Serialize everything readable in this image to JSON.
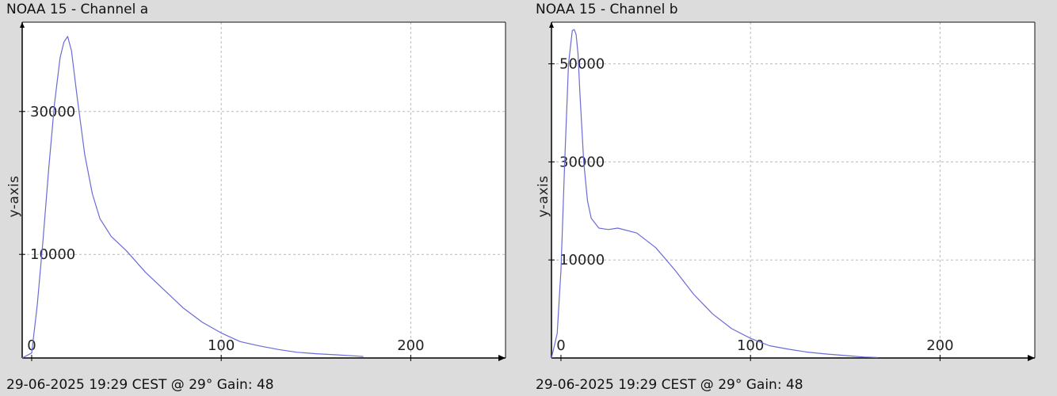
{
  "chart_data": [
    {
      "type": "line",
      "title": "NOAA 15 - Channel a",
      "footer": "29-06-2025 19:29 CEST @ 29° Gain: 48",
      "ylabel": "y-axis",
      "xlabel": "",
      "xlim": [
        -5,
        250
      ],
      "ylim": [
        -4500,
        42500
      ],
      "x_ticks": [
        0,
        100,
        200
      ],
      "y_ticks": [
        10000,
        30000
      ],
      "x_grid": [
        100,
        200
      ],
      "y_grid": [
        10000,
        30000
      ],
      "grid": true,
      "line_color": "#6b6bd6",
      "series": [
        {
          "x": [
            -5,
            0,
            3,
            6,
            9,
            12,
            15,
            17,
            19,
            21,
            24,
            28,
            32,
            36,
            42,
            50,
            60,
            70,
            80,
            90,
            100,
            110,
            120,
            130,
            140,
            150,
            160,
            170,
            175
          ],
          "values": [
            -4500,
            -3800,
            3000,
            12000,
            22000,
            31000,
            37500,
            39700,
            40500,
            38500,
            32000,
            24000,
            18500,
            15000,
            12500,
            10500,
            7500,
            5000,
            2500,
            500,
            -1000,
            -2200,
            -2800,
            -3300,
            -3700,
            -3900,
            -4050,
            -4200,
            -4300
          ]
        }
      ]
    },
    {
      "type": "line",
      "title": "NOAA 15 - Channel b",
      "footer": "29-06-2025 19:29 CEST @ 29° Gain: 48",
      "ylabel": "y-axis",
      "xlabel": "",
      "xlim": [
        -5,
        250
      ],
      "ylim": [
        -10000,
        58500
      ],
      "x_ticks": [
        0,
        100,
        200
      ],
      "y_ticks": [
        10000,
        30000,
        50000
      ],
      "x_grid": [
        100,
        200
      ],
      "y_grid": [
        10000,
        30000,
        50000
      ],
      "grid": true,
      "line_color": "#6b6bd6",
      "series": [
        {
          "x": [
            -5,
            -2,
            0,
            2,
            4,
            6,
            7,
            8,
            9,
            10,
            12,
            14,
            16,
            20,
            25,
            30,
            40,
            50,
            60,
            70,
            80,
            90,
            100,
            110,
            120,
            130,
            140,
            150,
            160,
            167
          ],
          "values": [
            -10000,
            -5000,
            8000,
            30000,
            50000,
            56800,
            57000,
            56000,
            52000,
            44000,
            30000,
            22000,
            18500,
            16500,
            16200,
            16500,
            15500,
            12500,
            8000,
            3000,
            -1000,
            -4000,
            -6000,
            -7500,
            -8200,
            -8800,
            -9200,
            -9500,
            -9800,
            -9900
          ]
        }
      ]
    }
  ]
}
